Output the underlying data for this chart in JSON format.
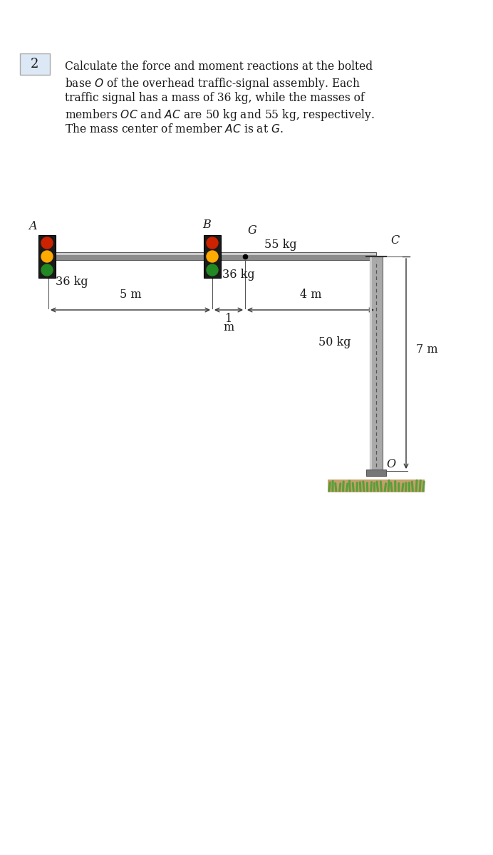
{
  "problem_number": "2",
  "bg_color": "#ffffff",
  "text_color": "#1a1a1a",
  "label_A": "A",
  "label_B": "B",
  "label_C": "C",
  "label_G": "G",
  "label_O": "O",
  "label_36kg_left": "36 kg",
  "label_36kg_right": "36 kg",
  "label_55kg": "55 kg",
  "label_50kg": "50 kg",
  "label_5m": "5 m",
  "label_1m": "1",
  "label_1m_sub": "m",
  "label_4m": "4 m",
  "label_7m": "7 m",
  "figsize": [
    6.92,
    12.0
  ],
  "dpi": 100,
  "arm_color": "#8c8c8c",
  "arm_edge": "#5a5a5a",
  "pole_color": "#aaaaaa",
  "pole_edge": "#666666",
  "pole_dash_color": "#555555",
  "signal_box_color": "#1a1a1a",
  "signal_red": "#cc2200",
  "signal_yellow": "#ffaa00",
  "signal_green": "#228822",
  "grass_color": "#5a9e3a",
  "dirt_color": "#c4a06a",
  "dim_color": "#333333",
  "box_fill": "#dce8f5",
  "box_edge": "#aaaaaa"
}
